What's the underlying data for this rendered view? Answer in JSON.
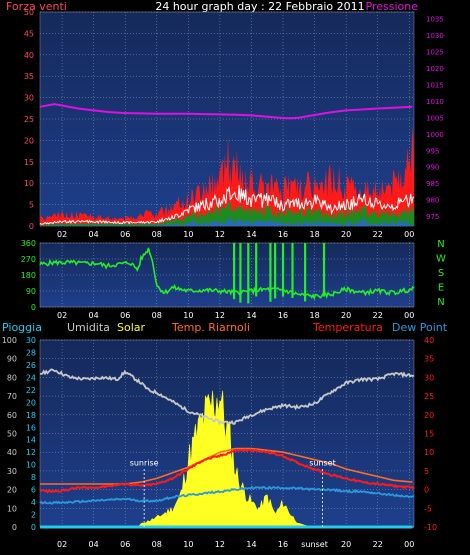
{
  "title": "24 hour graph day : 22 Febbraio 2011",
  "colors": {
    "background": "#000000",
    "plot_bg_top": "#15295a",
    "plot_bg_bottom": "#1d3c84",
    "grid": "#8aa0c8",
    "wind": "#ff1a1a",
    "wind_avg": "#ffffff",
    "wind_green": "#1f8a1f",
    "wind_blue": "#2a66cc",
    "pressure": "#e010e0",
    "direction": "#22ee22",
    "humidity": "#c8c8c8",
    "solar": "#ffff22",
    "temp_riarnoli": "#ff6a2a",
    "temperature": "#ff1a1a",
    "dew_point": "#2a99dd",
    "rain": "#22ccee",
    "left_axis_pink": "#ff4466",
    "rain_axis": "#22ccee",
    "annot": "#ffffff"
  },
  "panel1": {
    "left_label": "Forza venti",
    "right_label": "Pressione",
    "left_ticks": [
      "50",
      "45",
      "40",
      "35",
      "30",
      "25",
      "20",
      "15",
      "10",
      "5",
      "0"
    ],
    "right_ticks": [
      "1035",
      "1030",
      "1025",
      "1020",
      "1015",
      "1010",
      "1005",
      "1000",
      "995",
      "990",
      "985",
      "980",
      "975"
    ],
    "x_ticks": [
      "02",
      "04",
      "06",
      "08",
      "10",
      "12",
      "14",
      "16",
      "18",
      "20",
      "22",
      "00"
    ]
  },
  "panel2": {
    "left_ticks": [
      "360",
      "270",
      "180",
      "90",
      "0"
    ],
    "right_ticks": [
      "N",
      "W",
      "S",
      "E",
      "N"
    ],
    "x_ticks": [
      "02",
      "04",
      "06",
      "08",
      "10",
      "12",
      "14",
      "16",
      "18",
      "20",
      "22",
      "00"
    ]
  },
  "panel3": {
    "legend": {
      "rain": "Pioggia",
      "humidity": "Umidita",
      "solar": "Solar",
      "temp_riarnoli": "Temp. Riarnoli",
      "temperature": "Temperatura",
      "dew_point": "Dew Point"
    },
    "humidity_ticks": [
      "100",
      "90",
      "80",
      "70",
      "60",
      "50",
      "40",
      "30",
      "20",
      "10",
      "0"
    ],
    "rain_ticks": [
      "30",
      "28",
      "26",
      "24",
      "22",
      "20",
      "18",
      "16",
      "14",
      "12",
      "10",
      "8",
      "6",
      "4",
      "2",
      "0"
    ],
    "temp_ticks": [
      "40",
      "35",
      "30",
      "25",
      "20",
      "15",
      "10",
      "5",
      "0",
      "-5",
      "-10"
    ],
    "x_ticks": [
      "02",
      "04",
      "06",
      "08",
      "10",
      "12",
      "14",
      "16",
      "sunset",
      "20",
      "22",
      "00"
    ],
    "sunrise_label": "sunrise",
    "sunset_label": "sunset"
  },
  "chart_data": [
    {
      "type": "line",
      "x_unit": "hour",
      "xlim": [
        0.6,
        24.3
      ],
      "y_left": {
        "label": "Forza venti",
        "lim": [
          0,
          50
        ]
      },
      "y_right": {
        "label": "Pressione",
        "lim": [
          972,
          1037
        ]
      },
      "series": [
        {
          "name": "Pressione",
          "axis": "right",
          "x": [
            0.6,
            1.5,
            2,
            3,
            4,
            5,
            6,
            7,
            8,
            9,
            10,
            11,
            12,
            13,
            14,
            15,
            16,
            16.5,
            17,
            18,
            19,
            20,
            21,
            22,
            23,
            24.2
          ],
          "y": [
            1008.2,
            1009,
            1008.6,
            1007.7,
            1007.1,
            1006.6,
            1006.3,
            1006.2,
            1006.1,
            1006.1,
            1006.1,
            1006.0,
            1005.9,
            1005.8,
            1005.6,
            1005.2,
            1004.8,
            1004.7,
            1004.9,
            1005.7,
            1006.5,
            1007.1,
            1007.4,
            1007.7,
            1007.9,
            1008.2
          ]
        },
        {
          "name": "Forza venti (raffica)",
          "axis": "left",
          "x": [
            0.6,
            2,
            4,
            6,
            7,
            8,
            8.5,
            9,
            10,
            11,
            12,
            12.5,
            13,
            13.5,
            14,
            15,
            16,
            17,
            18,
            18.5,
            19,
            20,
            21,
            22,
            23,
            24.2
          ],
          "y": [
            2,
            3,
            2.5,
            2,
            3,
            3,
            4,
            5,
            7,
            10,
            13,
            17,
            15,
            11,
            11,
            10,
            9.5,
            10,
            11,
            9,
            13,
            10,
            9,
            10,
            11,
            19
          ]
        },
        {
          "name": "Forza venti (media)",
          "axis": "left",
          "x": [
            0.6,
            2,
            4,
            6,
            8,
            9,
            10,
            11,
            12,
            13,
            14,
            15,
            16,
            17,
            18,
            19,
            20,
            21,
            22,
            23,
            24.2
          ],
          "y": [
            0.5,
            1,
            1,
            0.8,
            1,
            2,
            4,
            5,
            6,
            8,
            6,
            6,
            5,
            5.5,
            6,
            4,
            5,
            6,
            5,
            5,
            6
          ]
        }
      ]
    },
    {
      "type": "scatter",
      "x_unit": "hour",
      "xlim": [
        0.6,
        24.3
      ],
      "y_left": {
        "lim": [
          0,
          360
        ]
      },
      "series": [
        {
          "name": "Direzione vento",
          "x": [
            0.6,
            1.5,
            2.5,
            3.5,
            4.3,
            4.8,
            5.5,
            6.3,
            6.8,
            7,
            7.5,
            7.8,
            8,
            8.5,
            9,
            10,
            11,
            12,
            13,
            14,
            15,
            16,
            17,
            18,
            19,
            20,
            21,
            22,
            23,
            24.2
          ],
          "y": [
            240,
            250,
            250,
            245,
            245,
            230,
            240,
            250,
            210,
            270,
            330,
            230,
            120,
            80,
            110,
            90,
            95,
            90,
            80,
            90,
            100,
            95,
            70,
            60,
            70,
            100,
            80,
            90,
            80,
            100
          ]
        }
      ]
    },
    {
      "type": "line",
      "x_unit": "hour",
      "xlim": [
        0.6,
        24.3
      ],
      "y_left": {
        "label": "Umidita",
        "lim": [
          0,
          100
        ]
      },
      "y_rain": {
        "label": "Pioggia",
        "lim": [
          0,
          30
        ]
      },
      "y_right": {
        "label": "Temperatura",
        "lim": [
          -10,
          40
        ]
      },
      "series": [
        {
          "name": "Umidita",
          "axis": "left",
          "x": [
            0.6,
            1.5,
            2.5,
            3.5,
            4.5,
            5.5,
            6,
            7,
            7.5,
            8,
            9,
            10,
            11,
            12,
            13,
            14,
            15,
            16,
            17,
            18,
            19,
            20,
            21,
            22,
            23,
            24.2
          ],
          "y": [
            82,
            84,
            80,
            79,
            80,
            79,
            83,
            77,
            73,
            72,
            67,
            62,
            59,
            56,
            56,
            60,
            63,
            65,
            64,
            66,
            72,
            77,
            79,
            79,
            82,
            81
          ]
        },
        {
          "name": "Temp. Riarnoli",
          "axis": "right",
          "x": [
            0.6,
            2,
            4,
            6,
            7,
            8,
            9,
            10,
            11,
            12,
            13,
            14,
            15,
            16,
            17,
            18,
            19,
            20,
            21,
            22,
            23,
            24.2
          ],
          "y": [
            1.5,
            1.5,
            1.5,
            1.5,
            2,
            3,
            4.5,
            6,
            8,
            10,
            11,
            11,
            10.5,
            10,
            9,
            8,
            7,
            5.5,
            4.5,
            3.5,
            2.5,
            2
          ]
        },
        {
          "name": "Temperatura",
          "axis": "right",
          "x": [
            0.6,
            1,
            2,
            3,
            4,
            5,
            6,
            7,
            8,
            9,
            10,
            11,
            12,
            13,
            14,
            15,
            16,
            17,
            18,
            19,
            20,
            21,
            22,
            23,
            24.2
          ],
          "y": [
            0,
            -0.5,
            -0.3,
            0.5,
            0.5,
            1,
            1.5,
            1,
            1.5,
            3,
            5.5,
            8,
            9,
            10.5,
            10.5,
            10,
            9,
            7,
            5.5,
            4,
            3,
            2,
            1.5,
            1,
            0.5
          ]
        },
        {
          "name": "Dew Point",
          "axis": "right",
          "x": [
            0.6,
            2,
            4,
            6,
            7,
            8,
            9,
            10,
            11,
            12,
            13,
            14,
            15,
            16,
            17,
            18,
            19,
            20,
            21,
            22,
            23,
            24.2
          ],
          "y": [
            -3.5,
            -3.5,
            -3,
            -2.5,
            -3,
            -3,
            -2,
            -1.5,
            -1,
            -0.5,
            0,
            0.5,
            0.5,
            0.5,
            0.3,
            0,
            0,
            -0.5,
            -0.5,
            -1,
            -1.5,
            -2
          ]
        },
        {
          "name": "Solar",
          "axis": "rain",
          "x": [
            0.6,
            6.8,
            7,
            8,
            9,
            9.5,
            10,
            10.5,
            11,
            11.5,
            12,
            12.3,
            12.6,
            13,
            13.5,
            14,
            14.5,
            15,
            15.5,
            16,
            16.5,
            17,
            17.5,
            18,
            24.2
          ],
          "y": [
            0,
            0,
            0.5,
            1.5,
            3,
            5,
            11,
            15,
            18,
            20,
            22,
            17,
            15,
            9,
            6,
            4,
            3,
            5,
            2,
            4,
            2,
            0.5,
            0.2,
            0,
            0
          ]
        },
        {
          "name": "Pioggia",
          "axis": "rain",
          "x": [
            0.6,
            24.2
          ],
          "y": [
            0,
            0
          ]
        }
      ],
      "annotations": [
        {
          "label": "sunrise",
          "x": 7.2
        },
        {
          "label": "sunset",
          "x": 18.5
        }
      ]
    }
  ]
}
